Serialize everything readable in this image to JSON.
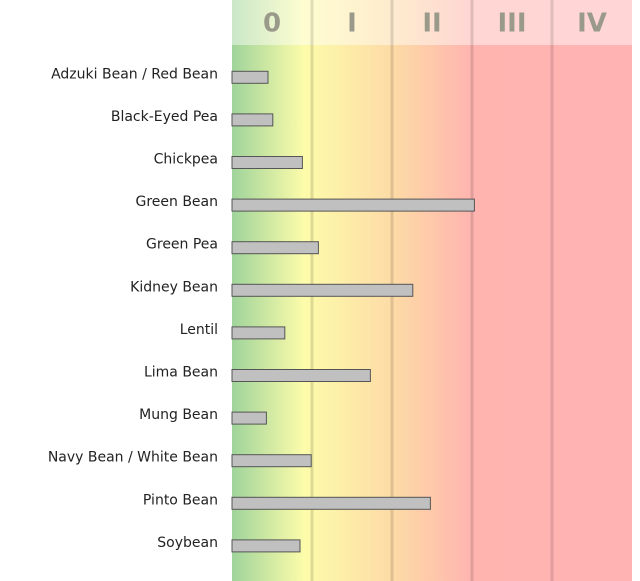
{
  "chart_data": {
    "type": "bar",
    "zones": [
      "0",
      "I",
      "II",
      "III",
      "IV"
    ],
    "categories": [
      "Adzuki Bean / Red Bean",
      "Black-Eyed Pea",
      "Chickpea",
      "Green Bean",
      "Green Pea",
      "Kidney Bean",
      "Lentil",
      "Lima Bean",
      "Mung Bean",
      "Navy Bean / White Bean",
      "Pinto Bean",
      "Soybean"
    ],
    "values": [
      0.45,
      0.51,
      0.88,
      3.03,
      1.08,
      2.26,
      0.66,
      1.73,
      0.43,
      0.99,
      2.48,
      0.85
    ],
    "color": "#c0c0c0",
    "xlim": [
      0,
      5
    ],
    "xticks": [
      1,
      2,
      3,
      4
    ],
    "grid": true
  }
}
